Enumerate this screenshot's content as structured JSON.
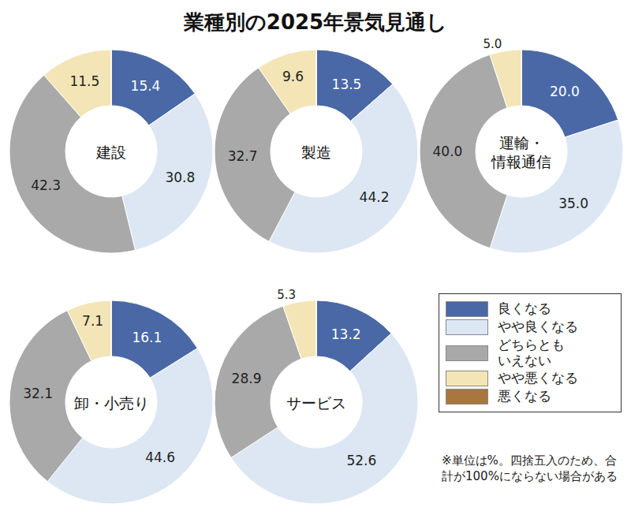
{
  "title": "業種別の2025年景気見通し",
  "note": "※単位は%。四捨五入のため、合計が100%にならない場合がある",
  "chart_data": [
    {
      "type": "pie",
      "title": "建設",
      "categories": [
        "良くなる",
        "やや良くなる",
        "どちらとも\nいえない",
        "やや悪くなる",
        "悪くなる"
      ],
      "values": [
        15.4,
        30.8,
        42.3,
        11.5,
        0
      ],
      "colors": [
        "#4a68a6",
        "#dce7f3",
        "#a9a9a9",
        "#f3e5b5",
        "#a8773f"
      ],
      "data_labels": true
    },
    {
      "type": "pie",
      "title": "製造",
      "categories": [
        "良くなる",
        "やや良くなる",
        "どちらとも\nいえない",
        "やや悪くなる",
        "悪くなる"
      ],
      "values": [
        13.5,
        44.2,
        32.7,
        9.6,
        0
      ],
      "colors": [
        "#4a68a6",
        "#dce7f3",
        "#a9a9a9",
        "#f3e5b5",
        "#a8773f"
      ],
      "data_labels": true
    },
    {
      "type": "pie",
      "title": "運輸・\n情報通信",
      "categories": [
        "良くなる",
        "やや良くなる",
        "どちらとも\nいえない",
        "やや悪くなる",
        "悪くなる"
      ],
      "values": [
        20.0,
        35.0,
        40.0,
        5.0,
        0
      ],
      "value_labels": [
        "20.0",
        "35.0",
        "40.0",
        "5.0",
        null
      ],
      "colors": [
        "#4a68a6",
        "#dce7f3",
        "#a9a9a9",
        "#f3e5b5",
        "#a8773f"
      ],
      "data_labels": true
    },
    {
      "type": "pie",
      "title": "卸・小売り",
      "categories": [
        "良くなる",
        "やや良くなる",
        "どちらとも\nいえない",
        "やや悪くなる",
        "悪くなる"
      ],
      "values": [
        16.1,
        44.6,
        32.1,
        7.1,
        0
      ],
      "colors": [
        "#4a68a6",
        "#dce7f3",
        "#a9a9a9",
        "#f3e5b5",
        "#a8773f"
      ],
      "data_labels": true
    },
    {
      "type": "pie",
      "title": "サービス",
      "categories": [
        "良くなる",
        "やや良くなる",
        "どちらとも\nいえない",
        "やや悪くなる",
        "悪くなる"
      ],
      "values": [
        13.2,
        52.6,
        28.9,
        5.3,
        0
      ],
      "colors": [
        "#4a68a6",
        "#dce7f3",
        "#a9a9a9",
        "#f3e5b5",
        "#a8773f"
      ],
      "data_labels": true
    }
  ]
}
